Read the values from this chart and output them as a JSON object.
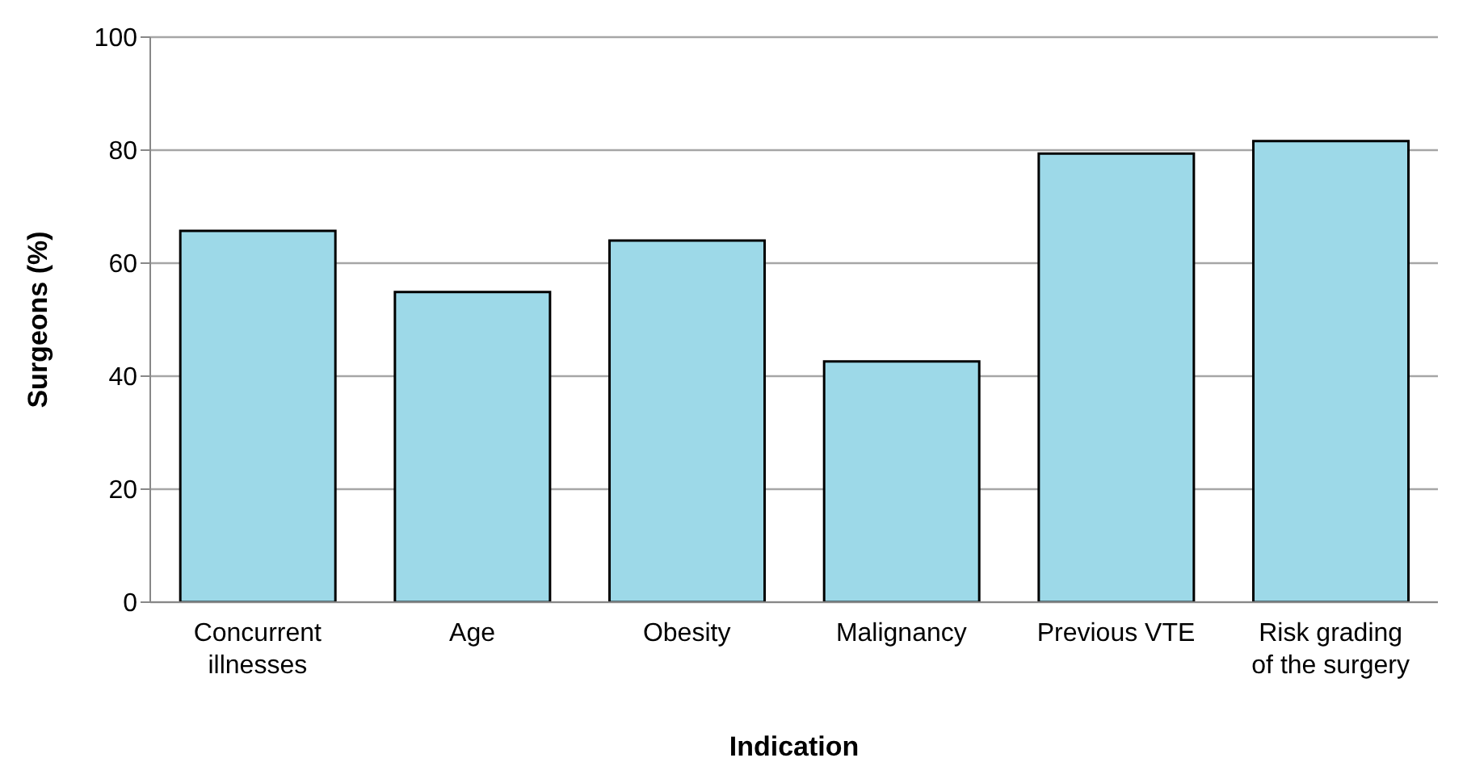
{
  "chart_data": {
    "type": "bar",
    "xlabel": "Indication",
    "ylabel": "Surgeons (%)",
    "categories": [
      "Concurrent illnesses",
      "Age",
      "Obesity",
      "Malignancy",
      "Previous VTE",
      "Risk grading of the surgery"
    ],
    "values": [
      65.7,
      54.9,
      64.0,
      42.6,
      79.4,
      81.6
    ],
    "color": "#9dd9e8",
    "ylim": [
      0,
      100
    ],
    "yticks": [
      0,
      20,
      40,
      60,
      80,
      100
    ],
    "grid": "y"
  }
}
